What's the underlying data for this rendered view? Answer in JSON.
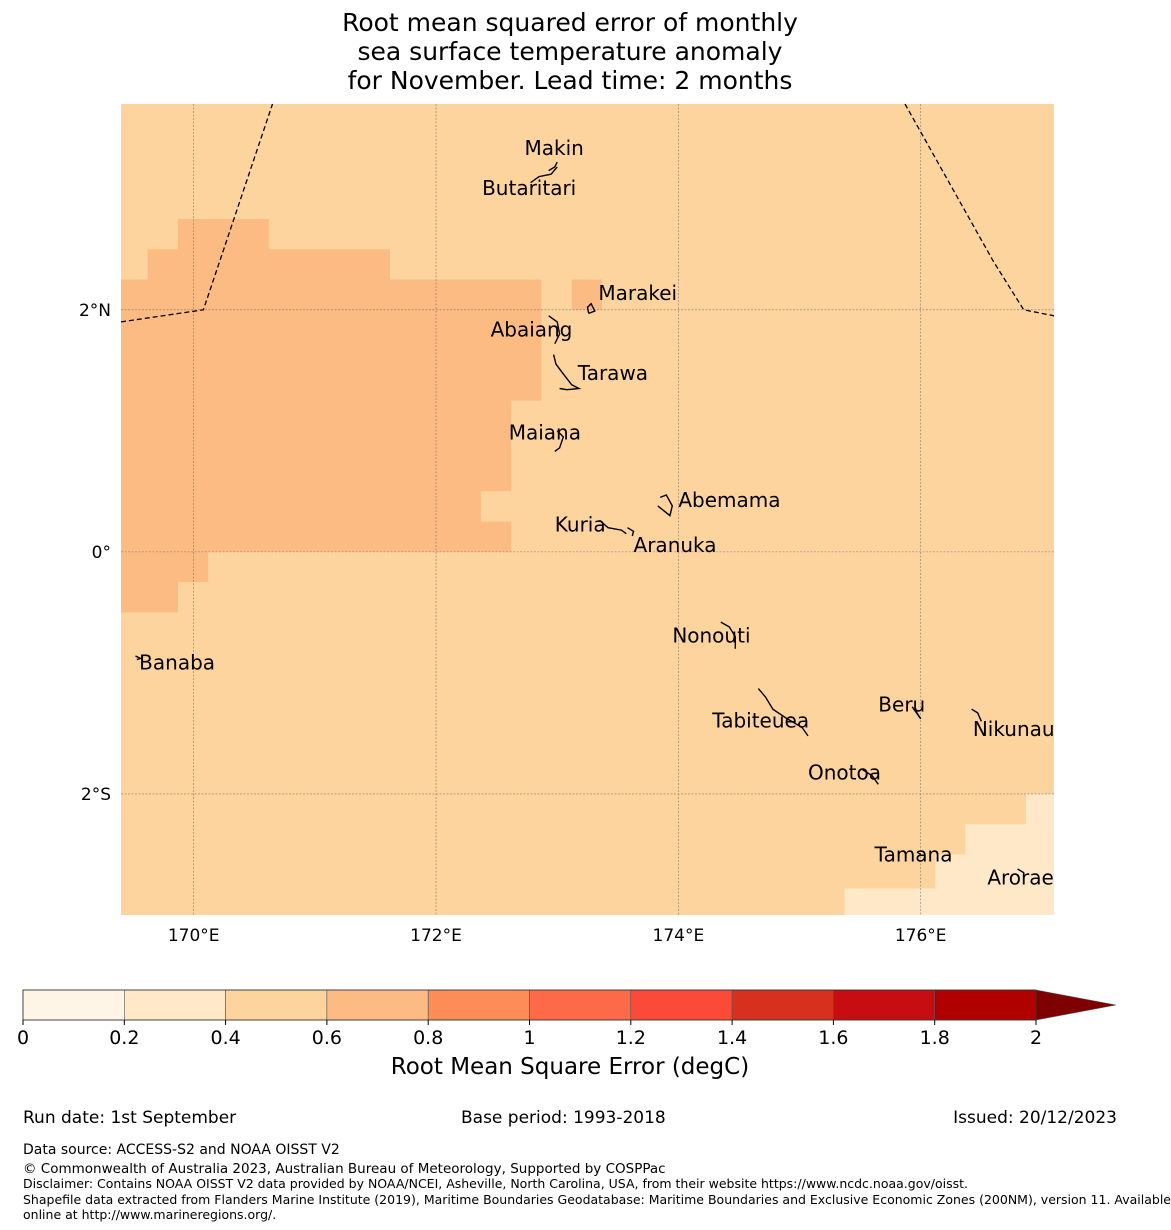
{
  "title": {
    "line1": "Root mean squared error of monthly",
    "line2": "sea surface temperature anomaly",
    "line3": "for November. Lead time: 2 months"
  },
  "map": {
    "lon_range": [
      169.4,
      177.1
    ],
    "lat_range": [
      -3.0,
      3.7
    ],
    "lon_ticks": [
      {
        "value": 170,
        "label": "170°E"
      },
      {
        "value": 172,
        "label": "172°E"
      },
      {
        "value": 174,
        "label": "174°E"
      },
      {
        "value": 176,
        "label": "176°E"
      }
    ],
    "lat_ticks": [
      {
        "value": 2,
        "label": "2°N"
      },
      {
        "value": 0,
        "label": "0°"
      },
      {
        "value": -2,
        "label": "2°S"
      }
    ],
    "field_colors": {
      "0.4-0.6": "#fdd49e",
      "0.6-0.8": "#fdbb84",
      "0.2-0.4": "#fee8c8"
    },
    "background_class": "0.4-0.6",
    "error_regions": [
      {
        "class": "0.6-0.8",
        "polygon": [
          [
            169.4,
            1.4
          ],
          [
            169.4,
            -0.5
          ],
          [
            169.87,
            -0.5
          ],
          [
            169.87,
            -0.25
          ],
          [
            170.12,
            -0.25
          ],
          [
            170.12,
            0.0
          ],
          [
            172.62,
            0.0
          ],
          [
            172.62,
            0.25
          ],
          [
            172.37,
            0.25
          ],
          [
            172.37,
            0.5
          ],
          [
            172.62,
            0.5
          ],
          [
            172.62,
            1.25
          ],
          [
            172.87,
            1.25
          ],
          [
            172.87,
            2.25
          ],
          [
            171.62,
            2.25
          ],
          [
            171.62,
            2.5
          ],
          [
            170.62,
            2.5
          ],
          [
            170.62,
            2.75
          ],
          [
            169.87,
            2.75
          ],
          [
            169.87,
            2.5
          ],
          [
            169.62,
            2.5
          ],
          [
            169.62,
            2.25
          ],
          [
            169.4,
            2.25
          ]
        ]
      },
      {
        "class": "0.6-0.8",
        "polygon": [
          [
            173.12,
            2.25
          ],
          [
            173.37,
            2.25
          ],
          [
            173.37,
            2.0
          ],
          [
            173.12,
            2.0
          ]
        ]
      },
      {
        "class": "0.2-0.4",
        "polygon": [
          [
            175.37,
            -3.0
          ],
          [
            175.37,
            -2.78
          ],
          [
            176.12,
            -2.78
          ],
          [
            176.12,
            -2.5
          ],
          [
            176.37,
            -2.5
          ],
          [
            176.37,
            -2.25
          ],
          [
            176.87,
            -2.25
          ],
          [
            176.87,
            -2.0
          ],
          [
            177.1,
            -2.0
          ],
          [
            177.1,
            -3.0
          ]
        ]
      }
    ],
    "eez_lines": [
      [
        [
          169.4,
          1.9
        ],
        [
          170.08,
          2.0
        ],
        [
          170.65,
          3.7
        ]
      ],
      [
        [
          175.87,
          3.7
        ],
        [
          176.6,
          2.4
        ],
        [
          176.85,
          2.0
        ],
        [
          177.1,
          1.95
        ]
      ]
    ],
    "islands": [
      {
        "name": "Makin",
        "lon": 173.0,
        "lat": 3.3,
        "label_lon": 172.73,
        "label_lat": 3.28,
        "coast": [
          [
            172.93,
            3.15
          ],
          [
            172.98,
            3.18
          ],
          [
            173.0,
            3.22
          ]
        ]
      },
      {
        "name": "Butaritari",
        "lon": 172.9,
        "lat": 3.1,
        "label_lon": 172.38,
        "label_lat": 2.95,
        "coast": [
          [
            172.78,
            3.05
          ],
          [
            172.85,
            3.1
          ],
          [
            172.95,
            3.12
          ],
          [
            173.0,
            3.18
          ]
        ]
      },
      {
        "name": "Marakei",
        "lon": 173.28,
        "lat": 2.0,
        "label_lon": 173.34,
        "label_lat": 2.08,
        "coast": [
          [
            173.26,
            1.97
          ],
          [
            173.25,
            2.02
          ],
          [
            173.28,
            2.05
          ],
          [
            173.31,
            1.99
          ],
          [
            173.26,
            1.97
          ]
        ]
      },
      {
        "name": "Abaiang",
        "lon": 172.95,
        "lat": 1.85,
        "label_lon": 172.45,
        "label_lat": 1.78,
        "coast": [
          [
            172.93,
            1.95
          ],
          [
            173.0,
            1.9
          ],
          [
            173.02,
            1.8
          ],
          [
            172.98,
            1.72
          ]
        ]
      },
      {
        "name": "Tarawa",
        "lon": 173.0,
        "lat": 1.45,
        "label_lon": 173.17,
        "label_lat": 1.42,
        "coast": [
          [
            172.97,
            1.63
          ],
          [
            172.99,
            1.55
          ],
          [
            173.05,
            1.47
          ],
          [
            173.12,
            1.38
          ],
          [
            173.18,
            1.35
          ],
          [
            173.08,
            1.34
          ],
          [
            173.02,
            1.35
          ]
        ]
      },
      {
        "name": "Maiana",
        "lon": 173.0,
        "lat": 0.93,
        "label_lon": 172.6,
        "label_lat": 0.93,
        "coast": [
          [
            173.0,
            1.0
          ],
          [
            173.05,
            0.95
          ],
          [
            173.02,
            0.86
          ],
          [
            172.98,
            0.83
          ]
        ]
      },
      {
        "name": "Abemama",
        "lon": 173.9,
        "lat": 0.4,
        "label_lon": 174.0,
        "label_lat": 0.37,
        "coast": [
          [
            173.85,
            0.45
          ],
          [
            173.9,
            0.47
          ],
          [
            173.95,
            0.38
          ],
          [
            173.93,
            0.3
          ],
          [
            173.83,
            0.38
          ]
        ]
      },
      {
        "name": "Kuria",
        "lon": 173.4,
        "lat": 0.22,
        "label_lon": 172.98,
        "label_lat": 0.17,
        "coast": [
          [
            173.35,
            0.26
          ],
          [
            173.42,
            0.2
          ],
          [
            173.53,
            0.18
          ],
          [
            173.57,
            0.15
          ]
        ]
      },
      {
        "name": "Aranuka",
        "lon": 173.6,
        "lat": 0.18,
        "label_lon": 173.63,
        "label_lat": 0.0,
        "coast": [
          [
            173.58,
            0.2
          ],
          [
            173.63,
            0.17
          ],
          [
            173.62,
            0.13
          ]
        ]
      },
      {
        "name": "Nonouti",
        "lon": 174.4,
        "lat": -0.65,
        "label_lon": 173.95,
        "label_lat": -0.75,
        "coast": [
          [
            174.35,
            -0.58
          ],
          [
            174.42,
            -0.62
          ],
          [
            174.47,
            -0.7
          ],
          [
            174.47,
            -0.8
          ]
        ]
      },
      {
        "name": "Tabiteuea",
        "lon": 174.8,
        "lat": -1.3,
        "label_lon": 174.28,
        "label_lat": -1.45,
        "coast": [
          [
            174.66,
            -1.13
          ],
          [
            174.72,
            -1.2
          ],
          [
            174.78,
            -1.3
          ],
          [
            174.9,
            -1.38
          ],
          [
            175.02,
            -1.45
          ],
          [
            175.07,
            -1.52
          ]
        ]
      },
      {
        "name": "Beru",
        "lon": 175.95,
        "lat": -1.35,
        "label_lon": 175.65,
        "label_lat": -1.32,
        "coast": [
          [
            175.93,
            -1.28
          ],
          [
            176.0,
            -1.38
          ],
          [
            175.95,
            -1.3
          ]
        ]
      },
      {
        "name": "Nikunau",
        "lon": 176.45,
        "lat": -1.35,
        "label_lon": 176.43,
        "label_lat": -1.52,
        "coast": [
          [
            176.42,
            -1.3
          ],
          [
            176.47,
            -1.33
          ],
          [
            176.5,
            -1.4
          ]
        ]
      },
      {
        "name": "Onotoa",
        "lon": 175.6,
        "lat": -1.85,
        "label_lon": 175.07,
        "label_lat": -1.88,
        "coast": [
          [
            175.52,
            -1.8
          ],
          [
            175.6,
            -1.85
          ],
          [
            175.65,
            -1.92
          ]
        ]
      },
      {
        "name": "Tamana",
        "lon": 175.98,
        "lat": -2.5,
        "label_lon": 175.62,
        "label_lat": -2.56,
        "coast": [
          [
            175.97,
            -2.48
          ],
          [
            176.0,
            -2.5
          ]
        ]
      },
      {
        "name": "Arorae",
        "lon": 176.83,
        "lat": -2.65,
        "label_lon": 176.55,
        "label_lat": -2.75,
        "coast": [
          [
            176.8,
            -2.62
          ],
          [
            176.85,
            -2.65
          ],
          [
            176.85,
            -2.68
          ]
        ]
      },
      {
        "name": "Banaba",
        "lon": 169.54,
        "lat": -0.87,
        "label_lon": 169.55,
        "label_lat": -0.97,
        "coast": [
          [
            169.52,
            -0.86
          ],
          [
            169.56,
            -0.88
          ],
          [
            169.53,
            -0.89
          ]
        ]
      }
    ]
  },
  "colorbar": {
    "title": "Root Mean Square Error (degC)",
    "bounds": [
      0,
      0.2,
      0.4,
      0.6,
      0.8,
      1,
      1.2,
      1.4,
      1.6,
      1.8,
      2
    ],
    "tick_labels": [
      "0",
      "0.2",
      "0.4",
      "0.6",
      "0.8",
      "1",
      "1.2",
      "1.4",
      "1.6",
      "1.8",
      "2"
    ],
    "colors": [
      "#fff5e6",
      "#fee8c8",
      "#fdd49e",
      "#fdbb84",
      "#fc8d59",
      "#fc6a4a",
      "#fb4a38",
      "#d7301f",
      "#c70c12",
      "#b10000"
    ],
    "extend_color": "#7f0000"
  },
  "footer": {
    "run_date": "Run date: 1st September",
    "base_period": "Base period: 1993-2018",
    "issued": "Issued: 20/12/2023",
    "data_source": "Data source: ACCESS-S2 and NOAA OISST V2",
    "copyright": "© Commonwealth of Australia 2023, Australian Bureau of Meteorology, Supported by COSPPac",
    "disclaimer": "Disclaimer: Contains NOAA OISST V2 data provided by NOAA/NCEI, Asheville, North Carolina, USA, from their website https://www.ncdc.noaa.gov/oisst.",
    "shapefile_line1": "Shapefile data extracted from Flanders Marine Institute (2019), Maritime Boundaries Geodatabase: Maritime Boundaries and Exclusive Economic Zones (200NM), version 11. Available",
    "shapefile_line2": "online at http://www.marineregions.org/."
  }
}
